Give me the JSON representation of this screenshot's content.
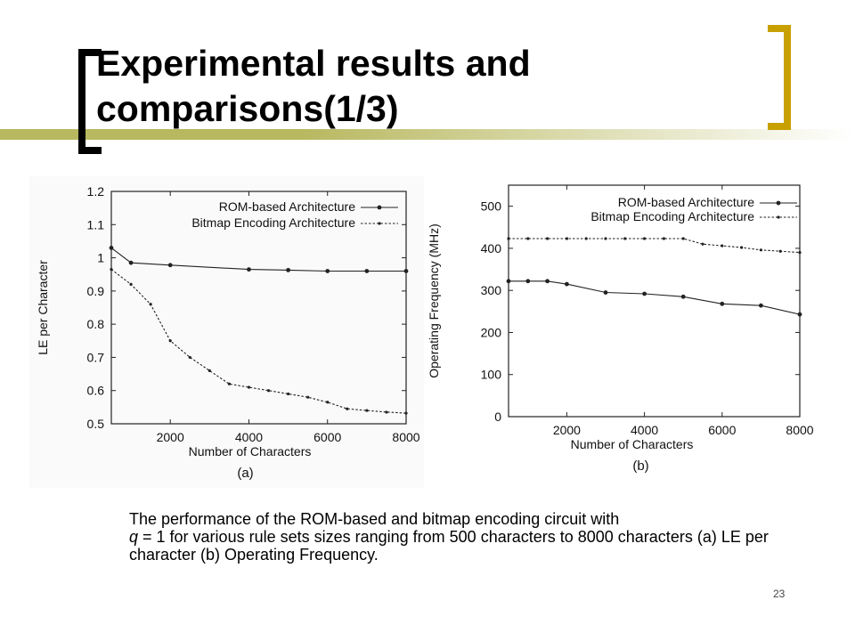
{
  "slide": {
    "title_line1": "Experimental results and",
    "title_line2": "comparisons(1/3)",
    "caption_pre": "The performance of the ROM-based and bitmap encoding circuit with",
    "caption_q": "q",
    "caption_post": " = 1 for various rule sets sizes ranging from 500 characters to 8000 characters (a) LE per character (b) Operating Frequency.",
    "page_number": "23",
    "colors": {
      "bracket_left": "#000000",
      "bracket_right": "#c8a000",
      "title_bar_start": "#b8b860",
      "title_bar_end": "#ffffff"
    }
  },
  "chart_data": [
    {
      "type": "line",
      "panel_label": "(a)",
      "xlabel": "Number of Characters",
      "ylabel": "LE per Character",
      "xlim": [
        500,
        8000
      ],
      "ylim": [
        0.5,
        1.2
      ],
      "x_ticks": [
        "2000",
        "4000",
        "6000",
        "8000"
      ],
      "y_ticks": [
        "0.5",
        "0.6",
        "0.7",
        "0.8",
        "0.9",
        "1",
        "1.1",
        "1.2"
      ],
      "legend_position": "top-right",
      "series": [
        {
          "name": "ROM-based Architecture",
          "style": "solid",
          "x": [
            500,
            1000,
            2000,
            4000,
            5000,
            6000,
            7000,
            8000
          ],
          "y": [
            1.03,
            0.985,
            0.978,
            0.965,
            0.963,
            0.96,
            0.96,
            0.96
          ]
        },
        {
          "name": "Bitmap Encoding Architecture",
          "style": "dashed",
          "x": [
            500,
            1000,
            1500,
            2000,
            2500,
            3000,
            3500,
            4000,
            4500,
            5000,
            5500,
            6000,
            6500,
            7000,
            7500,
            8000
          ],
          "y": [
            0.965,
            0.92,
            0.86,
            0.75,
            0.7,
            0.66,
            0.62,
            0.61,
            0.6,
            0.59,
            0.58,
            0.565,
            0.545,
            0.54,
            0.535,
            0.532
          ]
        }
      ]
    },
    {
      "type": "line",
      "panel_label": "(b)",
      "xlabel": "Number of Characters",
      "ylabel": "Operating Frequency (MHz)",
      "xlim": [
        500,
        8000
      ],
      "ylim": [
        0,
        550
      ],
      "x_ticks": [
        "2000",
        "4000",
        "6000",
        "8000"
      ],
      "y_ticks": [
        "0",
        "100",
        "200",
        "300",
        "400",
        "500"
      ],
      "legend_position": "top-right",
      "series": [
        {
          "name": "ROM-based Architecture",
          "style": "solid",
          "x": [
            500,
            1000,
            1500,
            2000,
            3000,
            4000,
            5000,
            6000,
            7000,
            8000
          ],
          "y": [
            322,
            322,
            322,
            315,
            295,
            292,
            285,
            268,
            264,
            243
          ]
        },
        {
          "name": "Bitmap Encoding Architecture",
          "style": "dashed",
          "x": [
            500,
            1000,
            1500,
            2000,
            2500,
            3000,
            3500,
            4000,
            4500,
            5000,
            5500,
            6000,
            6500,
            7000,
            7500,
            8000
          ],
          "y": [
            423,
            423,
            423,
            423,
            423,
            423,
            423,
            423,
            423,
            423,
            410,
            406,
            402,
            396,
            393,
            390
          ]
        }
      ]
    }
  ]
}
